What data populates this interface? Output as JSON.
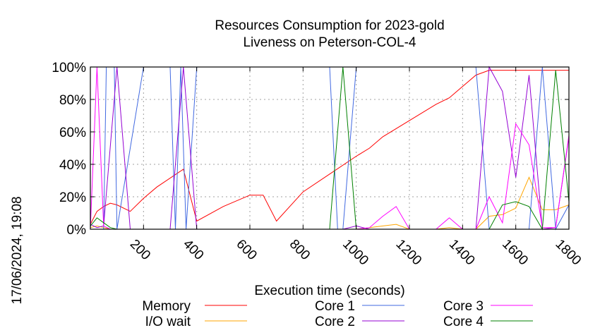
{
  "chart_data": {
    "type": "line",
    "title": "Resources Consumption for 2023-gold",
    "subtitle": "Liveness on Peterson-COL-4",
    "xlabel": "Execution time (seconds)",
    "ylabel": "",
    "timestamp": "17/06/2024, 19:08",
    "xlim": [
      0,
      1800
    ],
    "ylim": [
      0,
      100
    ],
    "x_ticks": [
      200,
      400,
      600,
      800,
      1000,
      1200,
      1400,
      1600,
      1800
    ],
    "x_tick_labels": [
      "200",
      "400",
      "600",
      "800",
      "1000",
      "1200",
      "1400",
      "1600",
      "1800"
    ],
    "y_ticks": [
      0,
      20,
      40,
      60,
      80,
      100
    ],
    "y_tick_labels": [
      "0%",
      "20%",
      "40%",
      "60%",
      "80%",
      "100%"
    ],
    "grid": true,
    "legend_position": "bottom",
    "series": [
      {
        "name": "Memory",
        "color": "#ff0000",
        "x": [
          0,
          25,
          50,
          75,
          100,
          150,
          200,
          250,
          350,
          400,
          500,
          600,
          650,
          700,
          800,
          900,
          1000,
          1050,
          1100,
          1200,
          1300,
          1350,
          1400,
          1450,
          1500,
          1550,
          1600,
          1650,
          1700,
          1750,
          1800
        ],
        "y": [
          3,
          11,
          14,
          16,
          15,
          11,
          19,
          26,
          37,
          5,
          14,
          21,
          21,
          5,
          23,
          34,
          45,
          50,
          57,
          67,
          77,
          81,
          88,
          95,
          98,
          98,
          98,
          98,
          98,
          98,
          98
        ]
      },
      {
        "name": "I/O wait",
        "color": "#ffa500",
        "x": [
          0,
          25,
          50,
          75,
          100,
          900,
          950,
          1000,
          1050,
          1100,
          1150,
          1200,
          1300,
          1350,
          1400,
          1450,
          1500,
          1550,
          1600,
          1650,
          1700,
          1750,
          1800
        ],
        "y": [
          1,
          2,
          1,
          0,
          0,
          0,
          0,
          0,
          1,
          2,
          3,
          0,
          0,
          1,
          0,
          0,
          8,
          9,
          13,
          32,
          12,
          12,
          15
        ]
      },
      {
        "name": "Core 1",
        "color": "#4169e1",
        "x": [
          0,
          50,
          60,
          90,
          100,
          200,
          300,
          320,
          340,
          360,
          400,
          500,
          600,
          700,
          800,
          900,
          930,
          950,
          1000,
          1100,
          1200,
          1300,
          1400,
          1450,
          1500,
          1550,
          1600,
          1650,
          1700,
          1750,
          1800
        ],
        "y": [
          0,
          0,
          100,
          100,
          0,
          100,
          100,
          0,
          100,
          0,
          100,
          100,
          100,
          100,
          100,
          100,
          0,
          0,
          100,
          100,
          100,
          100,
          100,
          100,
          0,
          0,
          0,
          0,
          100,
          0,
          15
        ]
      },
      {
        "name": "Core 2",
        "color": "#9400d3",
        "x": [
          0,
          25,
          50,
          100,
          150,
          200,
          250,
          300,
          350,
          400,
          500,
          600,
          700,
          800,
          900,
          950,
          1000,
          1050,
          1100,
          1200,
          1300,
          1400,
          1450,
          1500,
          1550,
          1600,
          1650,
          1700,
          1750,
          1800
        ],
        "y": [
          3,
          1,
          2,
          100,
          0,
          0,
          0,
          0,
          100,
          0,
          0,
          0,
          0,
          0,
          0,
          0,
          2,
          0,
          0,
          0,
          0,
          0,
          0,
          100,
          85,
          32,
          95,
          0,
          1,
          57
        ]
      },
      {
        "name": "Core 3",
        "color": "#ff00ff",
        "x": [
          0,
          25,
          50,
          75,
          100,
          150,
          200,
          250,
          300,
          350,
          400,
          500,
          600,
          700,
          800,
          900,
          950,
          1000,
          1050,
          1100,
          1150,
          1200,
          1300,
          1350,
          1400,
          1450,
          1500,
          1550,
          1600,
          1650,
          1700,
          1750,
          1800
        ],
        "y": [
          0,
          100,
          2,
          0,
          0,
          0,
          0,
          0,
          0,
          0,
          0,
          0,
          0,
          0,
          0,
          0,
          0,
          0,
          1,
          8,
          14,
          0,
          0,
          7,
          0,
          0,
          20,
          4,
          65,
          52,
          1,
          1,
          58
        ]
      },
      {
        "name": "Core 4",
        "color": "#008000",
        "x": [
          0,
          25,
          50,
          75,
          100,
          150,
          200,
          300,
          400,
          500,
          600,
          700,
          800,
          900,
          950,
          1000,
          1100,
          1200,
          1300,
          1400,
          1450,
          1500,
          1550,
          1600,
          1650,
          1700,
          1750,
          1800
        ],
        "y": [
          2,
          7,
          4,
          1,
          0,
          0,
          0,
          0,
          0,
          0,
          0,
          0,
          0,
          0,
          100,
          0,
          0,
          0,
          0,
          0,
          0,
          0,
          15,
          17,
          14,
          0,
          98,
          17
        ]
      }
    ]
  }
}
